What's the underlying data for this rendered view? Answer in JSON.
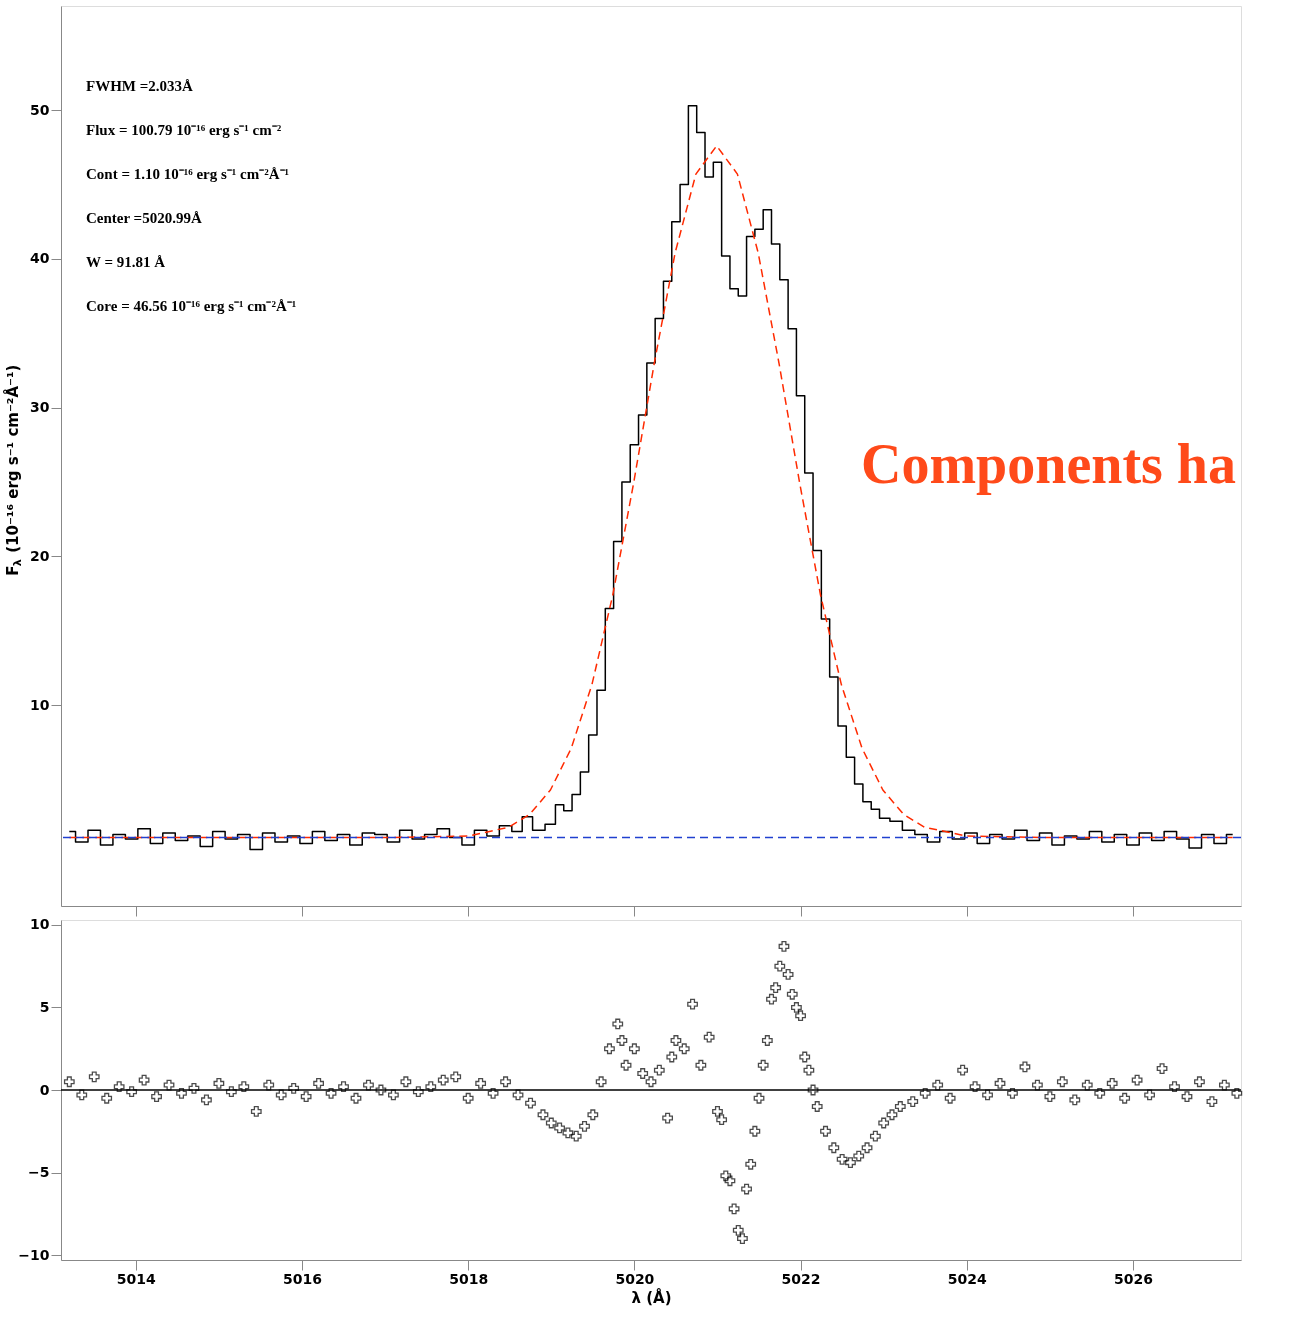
{
  "chart_data": [
    {
      "type": "line",
      "ylabel": "F$_{λ}$ (10⁻¹⁶ erg s⁻¹ cm⁻²Å⁻¹)",
      "xlim": [
        5013.1,
        5027.3
      ],
      "ylim": [
        -3.5,
        57
      ],
      "xticks": [
        5014,
        5016,
        5018,
        5020,
        5022,
        5024,
        5026
      ],
      "yticks": [
        10,
        20,
        30,
        40,
        50
      ],
      "tick_labels": "y",
      "grid": false,
      "annotations": [
        "FWHM =2.033Å",
        "Flux =  100.79 10⁻¹⁶ erg s⁻¹ cm⁻²",
        "Cont = 1.10 10⁻¹⁶ erg s⁻¹ cm⁻²Å⁻¹",
        "Center =5020.99Å",
        "W =  91.81 Å",
        "Core = 46.56 10⁻¹⁶ erg s⁻¹ cm⁻²Å⁻¹",
        "Components ha"
      ],
      "ref_lines": [
        {
          "axis": "y",
          "value": 1.1,
          "color": "#2040d0",
          "line_style": "dashed"
        }
      ],
      "series": [
        {
          "type": "step",
          "color": "#000000",
          "line_style": "solid",
          "x": [
            5013.2,
            5013.35,
            5013.5,
            5013.65,
            5013.8,
            5013.95,
            5014.1,
            5014.25,
            5014.4,
            5014.55,
            5014.7,
            5014.85,
            5015.0,
            5015.15,
            5015.3,
            5015.45,
            5015.6,
            5015.75,
            5015.9,
            5016.05,
            5016.2,
            5016.35,
            5016.5,
            5016.65,
            5016.8,
            5016.95,
            5017.1,
            5017.25,
            5017.4,
            5017.55,
            5017.7,
            5017.85,
            5018.0,
            5018.15,
            5018.3,
            5018.45,
            5018.6,
            5018.7,
            5018.85,
            5019.0,
            5019.1,
            5019.2,
            5019.3,
            5019.4,
            5019.5,
            5019.6,
            5019.7,
            5019.8,
            5019.9,
            5020.0,
            5020.1,
            5020.2,
            5020.3,
            5020.4,
            5020.5,
            5020.6,
            5020.7,
            5020.8,
            5020.9,
            5021.0,
            5021.1,
            5021.2,
            5021.3,
            5021.4,
            5021.5,
            5021.6,
            5021.7,
            5021.8,
            5021.9,
            5022.0,
            5022.1,
            5022.2,
            5022.3,
            5022.4,
            5022.5,
            5022.6,
            5022.7,
            5022.8,
            5022.9,
            5023.0,
            5023.15,
            5023.3,
            5023.45,
            5023.6,
            5023.75,
            5023.9,
            5024.05,
            5024.2,
            5024.35,
            5024.5,
            5024.65,
            5024.8,
            5024.95,
            5025.1,
            5025.25,
            5025.4,
            5025.55,
            5025.7,
            5025.85,
            5026.0,
            5026.15,
            5026.3,
            5026.45,
            5026.6,
            5026.75,
            5026.9,
            5027.05,
            5027.2
          ],
          "values": [
            1.5,
            0.8,
            1.6,
            0.6,
            1.3,
            1.0,
            1.7,
            0.7,
            1.4,
            0.9,
            1.2,
            0.5,
            1.5,
            1.0,
            1.3,
            0.3,
            1.4,
            0.8,
            1.2,
            0.7,
            1.5,
            0.9,
            1.3,
            0.6,
            1.4,
            1.3,
            0.8,
            1.6,
            1.0,
            1.3,
            1.7,
            1.1,
            0.6,
            1.6,
            1.2,
            1.9,
            1.5,
            2.5,
            1.6,
            2.0,
            3.3,
            2.9,
            4.0,
            5.5,
            8.0,
            11.0,
            16.5,
            21.0,
            25.0,
            27.5,
            29.5,
            33.0,
            36.0,
            38.5,
            42.5,
            45.0,
            50.3,
            48.5,
            45.5,
            46.5,
            40.2,
            38.0,
            37.5,
            41.5,
            42.0,
            43.3,
            41.0,
            38.6,
            35.3,
            30.8,
            25.6,
            20.4,
            15.8,
            11.9,
            8.6,
            6.5,
            4.7,
            3.5,
            3.0,
            2.4,
            2.2,
            1.6,
            1.3,
            0.8,
            1.5,
            1.0,
            1.4,
            0.7,
            1.3,
            1.0,
            1.6,
            0.9,
            1.4,
            0.6,
            1.2,
            1.0,
            1.5,
            0.8,
            1.3,
            0.6,
            1.4,
            0.9,
            1.5,
            1.0,
            0.4,
            1.3,
            0.7,
            1.3
          ]
        },
        {
          "type": "line",
          "color": "#ff2a00",
          "line_style": "dashed",
          "x": [
            5013.2,
            5017.0,
            5018.0,
            5018.49,
            5018.74,
            5018.99,
            5019.24,
            5019.49,
            5019.74,
            5019.99,
            5020.24,
            5020.49,
            5020.74,
            5020.99,
            5021.24,
            5021.49,
            5021.74,
            5021.99,
            5022.24,
            5022.49,
            5022.74,
            5022.99,
            5023.24,
            5023.49,
            5024.0,
            5025.0,
            5027.2
          ],
          "values": [
            1.1,
            1.1,
            1.2,
            1.8,
            2.66,
            4.3,
            7.1,
            11.4,
            17.4,
            24.9,
            33.0,
            40.4,
            45.7,
            47.6,
            45.7,
            40.4,
            33.0,
            24.9,
            17.4,
            11.4,
            7.1,
            4.3,
            2.66,
            1.8,
            1.2,
            1.1,
            1.1
          ]
        }
      ]
    },
    {
      "type": "scatter",
      "xlabel": "λ (Å)",
      "xlim": [
        5013.1,
        5027.3
      ],
      "ylim": [
        -10.3,
        10.3
      ],
      "xticks": [
        5014,
        5016,
        5018,
        5020,
        5022,
        5024,
        5026
      ],
      "yticks": [
        -10,
        -5,
        0,
        5,
        10
      ],
      "grid": false,
      "marker": "cross",
      "ref_lines": [
        {
          "axis": "y",
          "value": 0,
          "color": "#000000",
          "line_style": "solid"
        }
      ],
      "series": [
        {
          "color": "#000000",
          "x": [
            5013.2,
            5013.35,
            5013.5,
            5013.65,
            5013.8,
            5013.95,
            5014.1,
            5014.25,
            5014.4,
            5014.55,
            5014.7,
            5014.85,
            5015.0,
            5015.15,
            5015.3,
            5015.45,
            5015.6,
            5015.75,
            5015.9,
            5016.05,
            5016.2,
            5016.35,
            5016.5,
            5016.65,
            5016.8,
            5016.95,
            5017.1,
            5017.25,
            5017.4,
            5017.55,
            5017.7,
            5017.85,
            5018.0,
            5018.15,
            5018.3,
            5018.45,
            5018.6,
            5018.75,
            5018.9,
            5019.0,
            5019.1,
            5019.2,
            5019.3,
            5019.4,
            5019.5,
            5019.6,
            5019.7,
            5019.8,
            5019.85,
            5019.9,
            5020.0,
            5020.1,
            5020.2,
            5020.3,
            5020.4,
            5020.45,
            5020.5,
            5020.6,
            5020.7,
            5020.8,
            5020.9,
            5021.0,
            5021.05,
            5021.1,
            5021.15,
            5021.2,
            5021.25,
            5021.3,
            5021.35,
            5021.4,
            5021.45,
            5021.5,
            5021.55,
            5021.6,
            5021.65,
            5021.7,
            5021.75,
            5021.8,
            5021.85,
            5021.9,
            5021.95,
            5022.0,
            5022.05,
            5022.1,
            5022.15,
            5022.2,
            5022.3,
            5022.4,
            5022.5,
            5022.6,
            5022.7,
            5022.8,
            5022.9,
            5023.0,
            5023.1,
            5023.2,
            5023.35,
            5023.5,
            5023.65,
            5023.8,
            5023.95,
            5024.1,
            5024.25,
            5024.4,
            5024.55,
            5024.7,
            5024.85,
            5025.0,
            5025.15,
            5025.3,
            5025.45,
            5025.6,
            5025.75,
            5025.9,
            5026.05,
            5026.2,
            5026.35,
            5026.5,
            5026.65,
            5026.8,
            5026.95,
            5027.1,
            5027.25
          ],
          "values": [
            0.5,
            -0.3,
            0.8,
            -0.5,
            0.2,
            -0.1,
            0.6,
            -0.4,
            0.3,
            -0.2,
            0.1,
            -0.6,
            0.4,
            -0.1,
            0.2,
            -1.3,
            0.3,
            -0.3,
            0.1,
            -0.4,
            0.4,
            -0.2,
            0.2,
            -0.5,
            0.3,
            0.0,
            -0.3,
            0.5,
            -0.1,
            0.2,
            0.6,
            0.8,
            -0.5,
            0.4,
            -0.2,
            0.5,
            -0.3,
            -0.8,
            -1.5,
            -2.0,
            -2.3,
            -2.6,
            -2.8,
            -2.2,
            -1.5,
            0.5,
            2.5,
            4.0,
            3.0,
            1.5,
            2.5,
            1.0,
            0.5,
            1.2,
            -1.7,
            2.0,
            3.0,
            2.5,
            5.2,
            1.5,
            3.2,
            -1.3,
            -1.8,
            -5.2,
            -5.5,
            -7.2,
            -8.5,
            -9.0,
            -6.0,
            -4.5,
            -2.5,
            -0.5,
            1.5,
            3.0,
            5.5,
            6.2,
            7.5,
            8.7,
            7.0,
            5.8,
            5.0,
            4.5,
            2.0,
            1.2,
            0.0,
            -1.0,
            -2.5,
            -3.5,
            -4.2,
            -4.4,
            -4.0,
            -3.5,
            -2.8,
            -2.0,
            -1.5,
            -1.0,
            -0.7,
            -0.2,
            0.3,
            -0.5,
            1.2,
            0.2,
            -0.3,
            0.4,
            -0.2,
            1.4,
            0.3,
            -0.4,
            0.5,
            -0.6,
            0.3,
            -0.2,
            0.4,
            -0.5,
            0.6,
            -0.3,
            1.3,
            0.2,
            -0.4,
            0.5,
            -0.7,
            0.3,
            -0.2
          ]
        }
      ]
    }
  ]
}
